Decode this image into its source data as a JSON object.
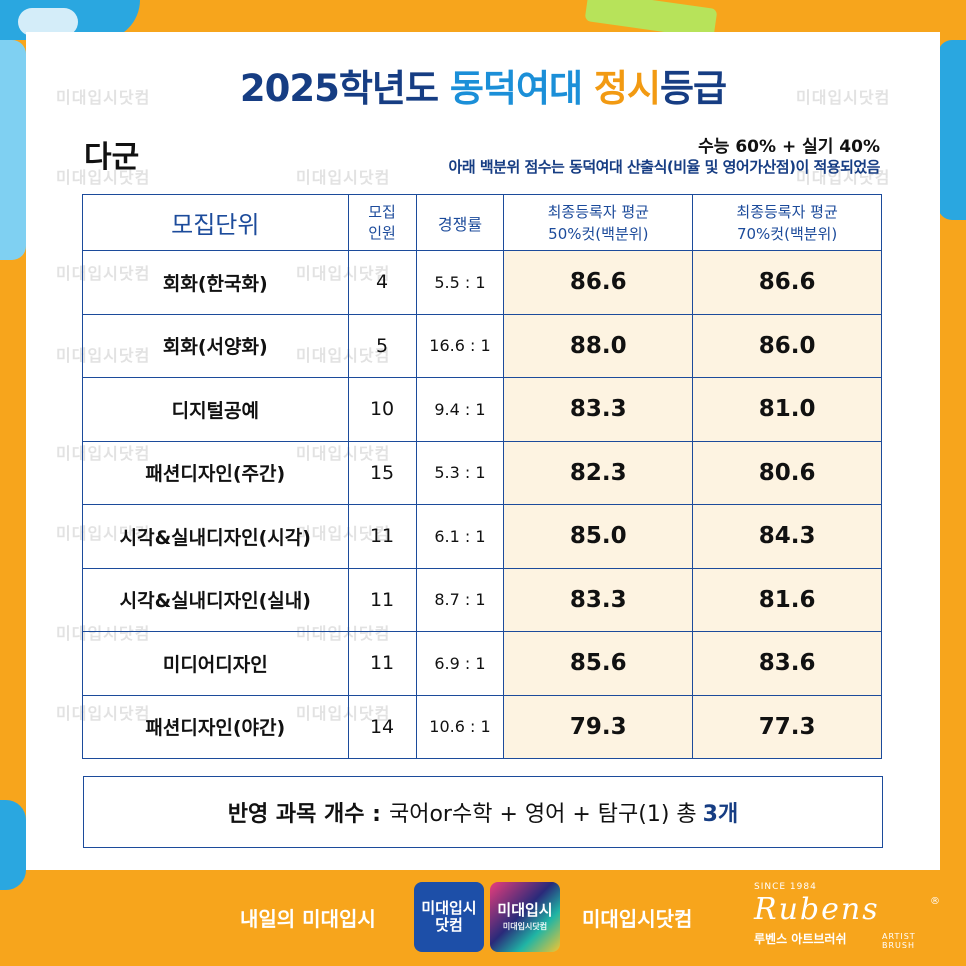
{
  "title": {
    "part1": "2025학년도 ",
    "part2": "동덕여대 ",
    "part3": "정시",
    "part4": "등급"
  },
  "group_label": "다군",
  "note_ratio": "수능 60% + 실기 40%",
  "note_formula": "아래 백분위 점수는 동덕여대 산출식(비율 및 영어가산점)이 적용되었음",
  "watermark": "미대입시닷컴",
  "table": {
    "headers": {
      "unit": "모집단위",
      "quota_line1": "모집",
      "quota_line2": "인원",
      "competition": "경쟁률",
      "cut50_line1": "최종등록자 평균",
      "cut50_line2": "50%컷(백분위)",
      "cut70_line1": "최종등록자 평균",
      "cut70_line2": "70%컷(백분위)"
    },
    "rows": [
      {
        "unit": "회화(한국화)",
        "quota": "4",
        "competition": "5.5 : 1",
        "cut50": "86.6",
        "cut70": "86.6"
      },
      {
        "unit": "회화(서양화)",
        "quota": "5",
        "competition": "16.6 : 1",
        "cut50": "88.0",
        "cut70": "86.0"
      },
      {
        "unit": "디지털공예",
        "quota": "10",
        "competition": "9.4 : 1",
        "cut50": "83.3",
        "cut70": "81.0"
      },
      {
        "unit": "패션디자인(주간)",
        "quota": "15",
        "competition": "5.3 : 1",
        "cut50": "82.3",
        "cut70": "80.6"
      },
      {
        "unit": "시각&실내디자인(시각)",
        "quota": "11",
        "competition": "6.1 : 1",
        "cut50": "85.0",
        "cut70": "84.3"
      },
      {
        "unit": "시각&실내디자인(실내)",
        "quota": "11",
        "competition": "8.7 : 1",
        "cut50": "83.3",
        "cut70": "81.6"
      },
      {
        "unit": "미디어디자인",
        "quota": "11",
        "competition": "6.9 : 1",
        "cut50": "85.6",
        "cut70": "83.6"
      },
      {
        "unit": "패션디자인(야간)",
        "quota": "14",
        "competition": "10.6 : 1",
        "cut50": "79.3",
        "cut70": "77.3"
      }
    ]
  },
  "summary": {
    "label": "반영 과목 개수 :",
    "value": "국어or수학 + 영어 + 탐구(1) 총",
    "count": "3개"
  },
  "footer": {
    "slogan": "내일의 미대입시",
    "logo1_main": "미대입시\n닷컴",
    "logo2_main": "미대입시",
    "logo2_sub": "미대입시닷컴",
    "site": "미대입시닷컴",
    "rubens_since": "SINCE 1984",
    "rubens_brand": "Rubens",
    "rubens_reg": "®",
    "rubens_korean": "루벤스 아트브러쉬",
    "rubens_artist": "ARTIST BRUSH"
  },
  "colors": {
    "background": "#f7a51c",
    "navy": "#163d83",
    "sky": "#1b8fd8",
    "accent_orange": "#f29a12",
    "border_blue": "#1c4b9b",
    "cut_cell_bg": "#fdf3e1"
  }
}
